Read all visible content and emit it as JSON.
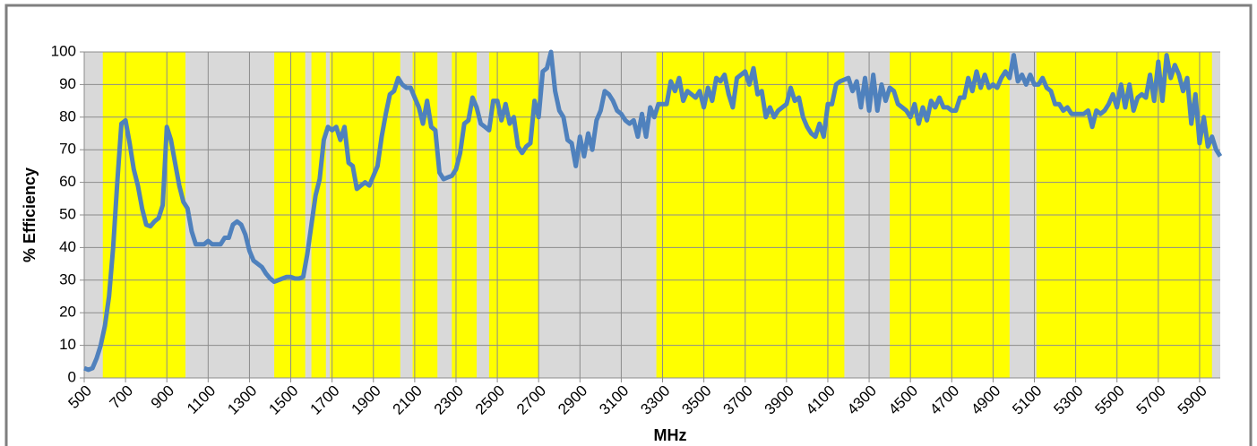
{
  "chart_data": {
    "type": "line",
    "x_label": "MHz",
    "y_label": "% Efficiency",
    "xlim": [
      500,
      6000
    ],
    "ylim": [
      0,
      100
    ],
    "xticks": [
      500,
      700,
      900,
      1100,
      1300,
      1500,
      1700,
      1900,
      2100,
      2300,
      2500,
      2700,
      2900,
      3100,
      3300,
      3500,
      3700,
      3900,
      4100,
      4300,
      4500,
      4700,
      4900,
      5100,
      5300,
      5500,
      5700,
      5900
    ],
    "yticks": [
      0,
      10,
      20,
      30,
      40,
      50,
      60,
      70,
      80,
      90,
      100
    ],
    "grid": true,
    "background": "#d9d9d9",
    "bands": {
      "color": "#ffff00",
      "ranges": [
        [
          590,
          990
        ],
        [
          1420,
          1570
        ],
        [
          1600,
          1670
        ],
        [
          1690,
          2030
        ],
        [
          2090,
          2210
        ],
        [
          2280,
          2400
        ],
        [
          2460,
          2700
        ],
        [
          3270,
          4180
        ],
        [
          4400,
          4980
        ],
        [
          5110,
          5960
        ]
      ]
    },
    "x": [
      500,
      520,
      540,
      560,
      580,
      600,
      620,
      640,
      660,
      680,
      700,
      720,
      740,
      760,
      780,
      800,
      820,
      840,
      860,
      880,
      900,
      920,
      940,
      960,
      980,
      1000,
      1020,
      1040,
      1060,
      1080,
      1100,
      1120,
      1140,
      1160,
      1180,
      1200,
      1220,
      1240,
      1260,
      1280,
      1300,
      1320,
      1340,
      1360,
      1380,
      1400,
      1420,
      1440,
      1460,
      1480,
      1500,
      1520,
      1540,
      1560,
      1580,
      1600,
      1620,
      1640,
      1660,
      1680,
      1700,
      1720,
      1740,
      1760,
      1780,
      1800,
      1820,
      1840,
      1860,
      1880,
      1900,
      1920,
      1940,
      1960,
      1980,
      2000,
      2020,
      2040,
      2060,
      2080,
      2100,
      2120,
      2140,
      2160,
      2180,
      2200,
      2220,
      2240,
      2260,
      2280,
      2300,
      2320,
      2340,
      2360,
      2380,
      2400,
      2420,
      2440,
      2460,
      2480,
      2500,
      2520,
      2540,
      2560,
      2580,
      2600,
      2620,
      2640,
      2660,
      2680,
      2700,
      2720,
      2740,
      2760,
      2780,
      2800,
      2820,
      2840,
      2860,
      2880,
      2900,
      2920,
      2940,
      2960,
      2980,
      3000,
      3020,
      3040,
      3060,
      3080,
      3100,
      3120,
      3140,
      3160,
      3180,
      3200,
      3220,
      3240,
      3260,
      3280,
      3300,
      3320,
      3340,
      3360,
      3380,
      3400,
      3420,
      3440,
      3460,
      3480,
      3500,
      3520,
      3540,
      3560,
      3580,
      3600,
      3620,
      3640,
      3660,
      3680,
      3700,
      3720,
      3740,
      3760,
      3780,
      3800,
      3820,
      3840,
      3860,
      3880,
      3900,
      3920,
      3940,
      3960,
      3980,
      4000,
      4020,
      4040,
      4060,
      4080,
      4100,
      4120,
      4140,
      4160,
      4180,
      4200,
      4220,
      4240,
      4260,
      4280,
      4300,
      4320,
      4340,
      4360,
      4380,
      4400,
      4420,
      4440,
      4460,
      4480,
      4500,
      4520,
      4540,
      4560,
      4580,
      4600,
      4620,
      4640,
      4660,
      4680,
      4700,
      4720,
      4740,
      4760,
      4780,
      4800,
      4820,
      4840,
      4860,
      4880,
      4900,
      4920,
      4940,
      4960,
      4980,
      5000,
      5020,
      5040,
      5060,
      5080,
      5100,
      5120,
      5140,
      5160,
      5180,
      5200,
      5220,
      5240,
      5260,
      5280,
      5300,
      5320,
      5340,
      5360,
      5380,
      5400,
      5420,
      5440,
      5460,
      5480,
      5500,
      5520,
      5540,
      5560,
      5580,
      5600,
      5620,
      5640,
      5660,
      5680,
      5700,
      5720,
      5740,
      5760,
      5780,
      5800,
      5820,
      5840,
      5860,
      5880,
      5900,
      5920,
      5940,
      5960,
      5980,
      6000
    ],
    "series": [
      {
        "color": "#4f81bd",
        "values": [
          3,
          2.5,
          3,
          6,
          10,
          16,
          25,
          40,
          60,
          78,
          79,
          72,
          64,
          59,
          52,
          47,
          46.5,
          48,
          49,
          53,
          77,
          73,
          66,
          59,
          54,
          52,
          45,
          41,
          41,
          41,
          42,
          41,
          41,
          41,
          43,
          43,
          47,
          48,
          47,
          44,
          39,
          36,
          35,
          34,
          32,
          30.5,
          29.5,
          30,
          30.5,
          31,
          31,
          30.5,
          30.5,
          31,
          38,
          47,
          56,
          61,
          73,
          77,
          76,
          77,
          73,
          77,
          66,
          65,
          58,
          59,
          60,
          59,
          62,
          65,
          74,
          81,
          87,
          88,
          92,
          90,
          89,
          89,
          86,
          83,
          78,
          85,
          77,
          76,
          63,
          61,
          61.5,
          62,
          64,
          69,
          78,
          79,
          86,
          83,
          78,
          77,
          76,
          85,
          85,
          79,
          84,
          78,
          80,
          71,
          69,
          71,
          72,
          85,
          80,
          94,
          95,
          100,
          88,
          82,
          80,
          73,
          72,
          65,
          74,
          68,
          75,
          70,
          79,
          82,
          88,
          87,
          85,
          82,
          81,
          79,
          78,
          79,
          74,
          81,
          74,
          83,
          80,
          84,
          84,
          84,
          91,
          88,
          92,
          85,
          88,
          87,
          86,
          88,
          83,
          89,
          85,
          92,
          91,
          93,
          87,
          83,
          92,
          93,
          94,
          90,
          95,
          87,
          88,
          80,
          83,
          80,
          82,
          83,
          84,
          89,
          85,
          86,
          80,
          77,
          75,
          74,
          78,
          74,
          84,
          84,
          90,
          91,
          91.5,
          92,
          88,
          91,
          83,
          92,
          82,
          93,
          82,
          90,
          85,
          89,
          88,
          84,
          83,
          82,
          80,
          84,
          78,
          83,
          79,
          85,
          83,
          86,
          83,
          83,
          82,
          82,
          86,
          86,
          92,
          88,
          94,
          89,
          93,
          89,
          90,
          89,
          92,
          94,
          92,
          99,
          91,
          93,
          90,
          93,
          90,
          90,
          92,
          89,
          88,
          84,
          84,
          82,
          83,
          81,
          81,
          81,
          81,
          82,
          77,
          82,
          81,
          82,
          84,
          87,
          83,
          90,
          83,
          90,
          82,
          86,
          87,
          86,
          93,
          85,
          97,
          85,
          99,
          92,
          96,
          93,
          88,
          92,
          78,
          87,
          72,
          80,
          71,
          74,
          70,
          68
        ]
      }
    ]
  }
}
